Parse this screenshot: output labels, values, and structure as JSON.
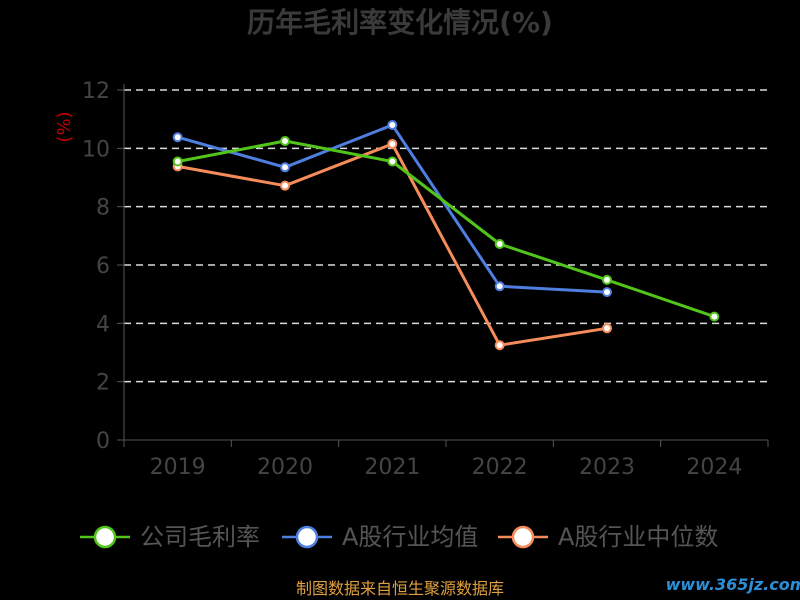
{
  "chart_data": {
    "type": "line",
    "title": "历年毛利率变化情况(%)",
    "ylabel": "(%)",
    "ylim": [
      0,
      12
    ],
    "yticks": [
      "0",
      "2",
      "4",
      "6",
      "8",
      "10",
      "12"
    ],
    "categories": [
      "2019",
      "2020",
      "2021",
      "2022",
      "2023",
      "2024"
    ],
    "grid": true,
    "legend_position": "bottom",
    "series": [
      {
        "name": "公司毛利率",
        "color": "#52c41a",
        "values": [
          9.55,
          10.25,
          9.55,
          6.72,
          5.49,
          4.23
        ]
      },
      {
        "name": "A股行业均值",
        "color": "#4e7fe0",
        "values": [
          10.38,
          9.35,
          10.8,
          5.27,
          5.07,
          null
        ]
      },
      {
        "name": "A股行业中位数",
        "color": "#f58c5a",
        "values": [
          9.38,
          8.72,
          10.15,
          3.25,
          3.83,
          null
        ]
      }
    ]
  },
  "footer": {
    "source": "制图数据来自恒生聚源数据库",
    "source_color": "#e0a040"
  },
  "watermark": {
    "text": "www.365jz.com",
    "color": "#2c8fd6"
  }
}
